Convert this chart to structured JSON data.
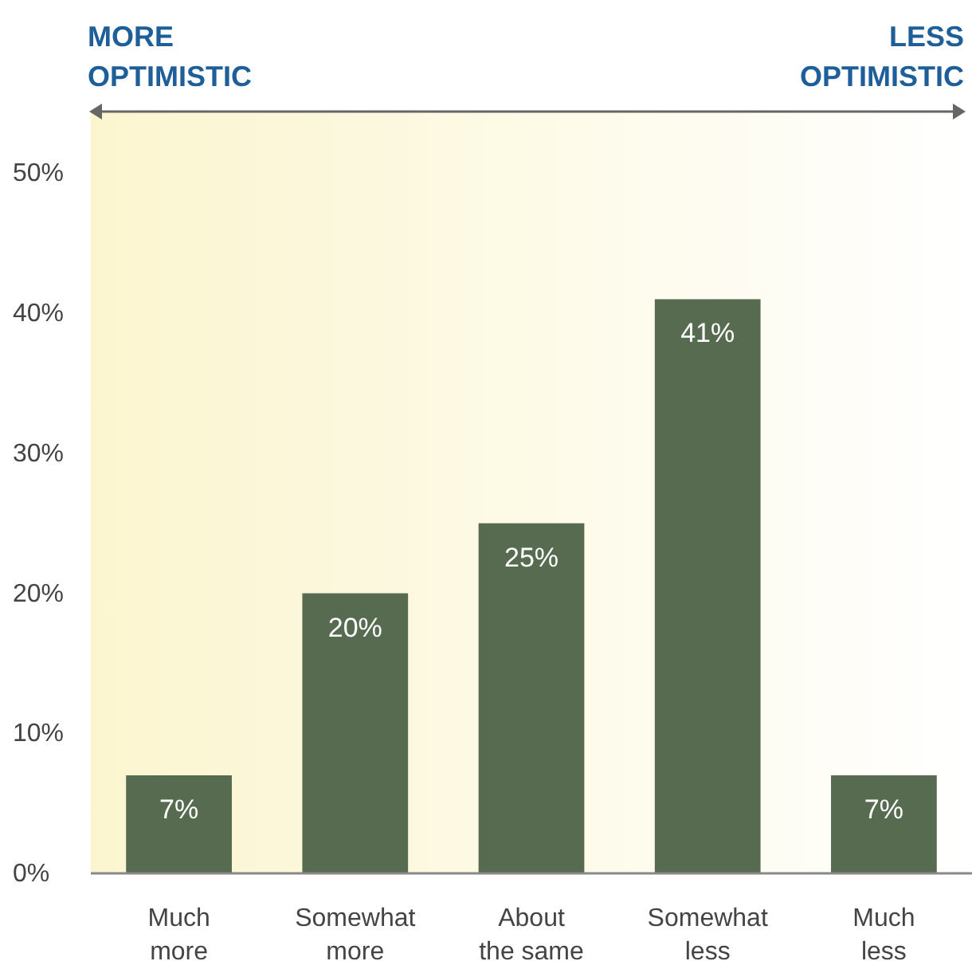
{
  "chart_data": {
    "type": "bar",
    "categories": [
      "Much\nmore",
      "Somewhat\nmore",
      "About\nthe same",
      "Somewhat\nless",
      "Much\nless"
    ],
    "values": [
      7,
      20,
      25,
      41,
      7
    ],
    "color": "#566b4f",
    "value_labels": [
      "7%",
      "20%",
      "25%",
      "41%",
      "7%"
    ],
    "ylim": [
      0,
      54.4
    ],
    "yticks": [
      {
        "value": 0,
        "label": "0%"
      },
      {
        "value": 10,
        "label": "10%"
      },
      {
        "value": 20,
        "label": "20%"
      },
      {
        "value": 30,
        "label": "30%"
      },
      {
        "value": 40,
        "label": "40%"
      },
      {
        "value": 50,
        "label": "50%"
      }
    ],
    "grid": false,
    "annotations": [
      "MORE\nOPTIMISTIC",
      "LESS\nOPTIMISTIC"
    ]
  }
}
